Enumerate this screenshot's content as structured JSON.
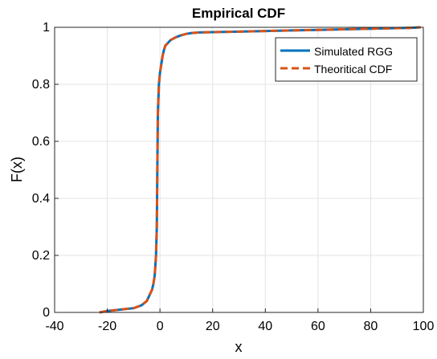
{
  "chart_data": {
    "type": "line",
    "title": "Empirical CDF",
    "xlabel": "x",
    "ylabel": "F(x)",
    "xlim": [
      -40,
      100
    ],
    "ylim": [
      0,
      1
    ],
    "xticks": [
      -40,
      -20,
      0,
      20,
      40,
      60,
      80,
      100
    ],
    "yticks": [
      0,
      0.2,
      0.4,
      0.6,
      0.8,
      1
    ],
    "xtick_labels": [
      "-40",
      "-20",
      "0",
      "20",
      "40",
      "60",
      "80",
      "100"
    ],
    "ytick_labels": [
      "0",
      "0.2",
      "0.4",
      "0.6",
      "0.8",
      "1"
    ],
    "grid": true,
    "legend_position": "top-right",
    "series": [
      {
        "name": "Simulated RGG",
        "color": "#0072BD",
        "style": "solid",
        "x": [
          -23,
          -20,
          -15,
          -10,
          -7,
          -5,
          -4,
          -3,
          -2.5,
          -2,
          -1.5,
          -1.2,
          -1,
          -0.8,
          -0.6,
          -0.4,
          -0.2,
          0,
          0.5,
          1,
          1.5,
          2,
          3,
          4,
          5,
          6,
          8,
          10,
          12,
          15,
          20,
          30,
          40,
          50,
          60,
          70,
          80,
          90,
          95,
          97,
          99
        ],
        "y": [
          0.0,
          0.005,
          0.01,
          0.015,
          0.025,
          0.04,
          0.06,
          0.08,
          0.1,
          0.13,
          0.2,
          0.3,
          0.5,
          0.7,
          0.75,
          0.8,
          0.82,
          0.84,
          0.87,
          0.9,
          0.92,
          0.935,
          0.945,
          0.955,
          0.96,
          0.965,
          0.972,
          0.977,
          0.98,
          0.982,
          0.983,
          0.985,
          0.987,
          0.989,
          0.991,
          0.993,
          0.995,
          0.997,
          0.998,
          0.999,
          1.0
        ]
      },
      {
        "name": "Theoritical CDF",
        "color": "#D95319",
        "style": "dashed",
        "x": [
          -23,
          -20,
          -15,
          -10,
          -7,
          -5,
          -4,
          -3,
          -2.5,
          -2,
          -1.5,
          -1.2,
          -1,
          -0.8,
          -0.6,
          -0.4,
          -0.2,
          0,
          0.5,
          1,
          1.5,
          2,
          3,
          4,
          5,
          6,
          8,
          10,
          12,
          15,
          20,
          30,
          40,
          50,
          60,
          70,
          80,
          90,
          95,
          97,
          99
        ],
        "y": [
          0.0,
          0.005,
          0.01,
          0.015,
          0.025,
          0.04,
          0.06,
          0.08,
          0.1,
          0.13,
          0.2,
          0.3,
          0.5,
          0.7,
          0.75,
          0.8,
          0.82,
          0.84,
          0.87,
          0.9,
          0.92,
          0.935,
          0.945,
          0.955,
          0.96,
          0.965,
          0.972,
          0.977,
          0.98,
          0.982,
          0.983,
          0.985,
          0.987,
          0.989,
          0.991,
          0.993,
          0.995,
          0.997,
          0.998,
          0.999,
          1.0
        ]
      }
    ]
  }
}
